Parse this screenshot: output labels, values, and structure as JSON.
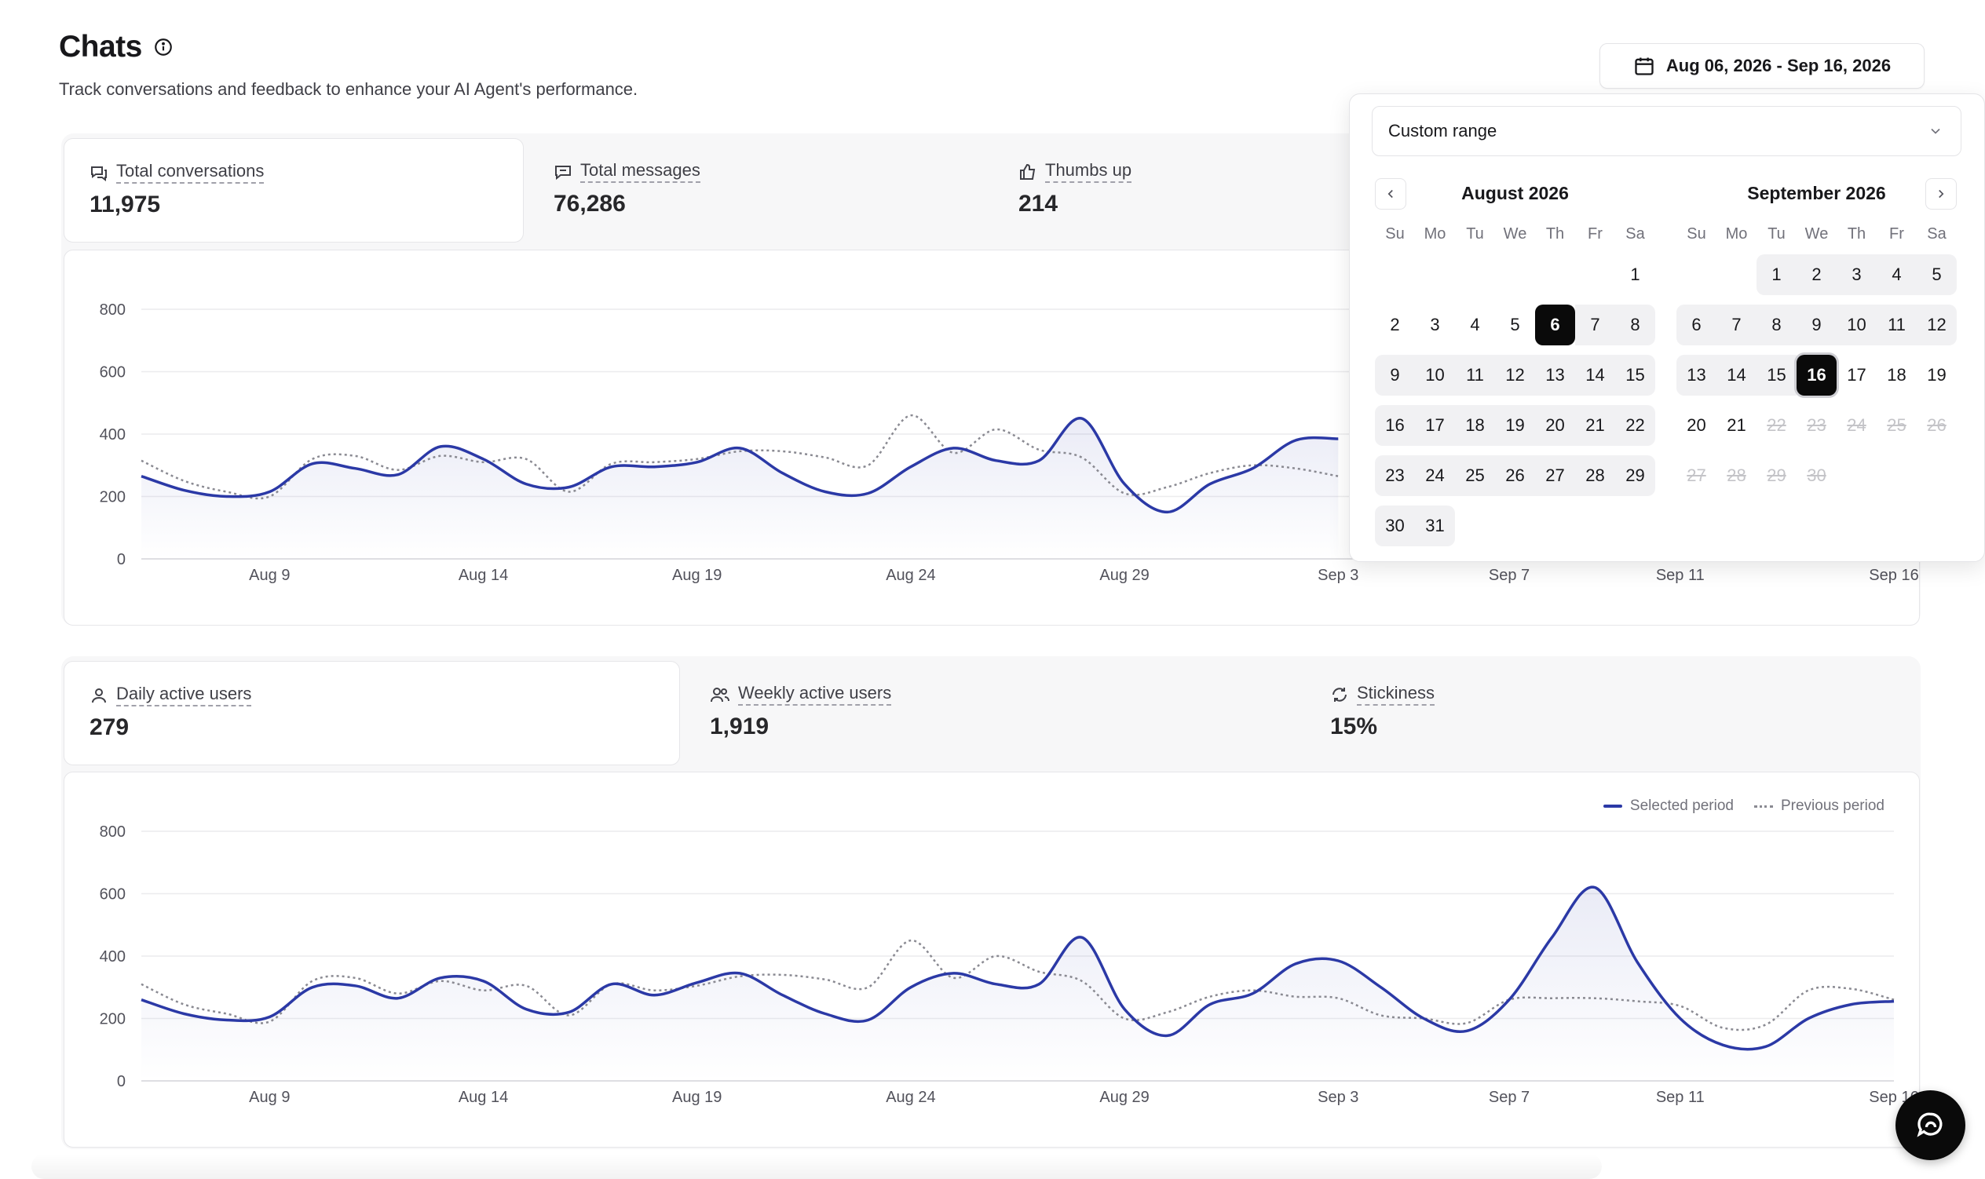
{
  "header": {
    "title": "Chats",
    "subtitle": "Track conversations and feedback to enhance your AI Agent's performance.",
    "date_range": "Aug 06, 2026 - Sep 16, 2026"
  },
  "top_metrics": [
    {
      "label": "Total conversations",
      "value": "11,975",
      "icon": "chat-bubbles-icon"
    },
    {
      "label": "Total messages",
      "value": "76,286",
      "icon": "message-icon"
    },
    {
      "label": "Thumbs up",
      "value": "214",
      "icon": "thumbs-up-icon"
    }
  ],
  "bottom_metrics": [
    {
      "label": "Daily active users",
      "value": "279",
      "icon": "user-icon"
    },
    {
      "label": "Weekly active users",
      "value": "1,919",
      "icon": "users-icon"
    },
    {
      "label": "Stickiness",
      "value": "15%",
      "icon": "refresh-icon"
    }
  ],
  "legend": {
    "selected": "Selected period",
    "previous": "Previous period"
  },
  "date_picker": {
    "preset": "Custom range",
    "months": [
      {
        "title": "August 2026"
      },
      {
        "title": "September 2026"
      }
    ],
    "weekdays": [
      "Su",
      "Mo",
      "Tu",
      "We",
      "Th",
      "Fr",
      "Sa"
    ]
  },
  "colors": {
    "selected": "#2b39a6",
    "previous": "#8a8a92",
    "accent": "#0a0a0a"
  },
  "chart_data": [
    {
      "type": "line",
      "ylim": [
        0,
        800
      ],
      "yticks": [
        0,
        200,
        400,
        600,
        800
      ],
      "xtick_labels": [
        "Aug 9",
        "Aug 14",
        "Aug 19",
        "Aug 24",
        "Aug 29",
        "Sep 3",
        "Sep 7",
        "Sep 11",
        "Sep 16"
      ],
      "x": [
        "Aug 6",
        "Aug 7",
        "Aug 8",
        "Aug 9",
        "Aug 10",
        "Aug 11",
        "Aug 12",
        "Aug 13",
        "Aug 14",
        "Aug 15",
        "Aug 16",
        "Aug 17",
        "Aug 18",
        "Aug 19",
        "Aug 20",
        "Aug 21",
        "Aug 22",
        "Aug 23",
        "Aug 24",
        "Aug 25",
        "Aug 26",
        "Aug 27",
        "Aug 28",
        "Aug 29",
        "Aug 30",
        "Aug 31",
        "Sep 1",
        "Sep 2",
        "Sep 3"
      ],
      "series": [
        {
          "name": "Selected period",
          "values": [
            265,
            220,
            200,
            215,
            305,
            290,
            270,
            360,
            320,
            240,
            230,
            295,
            295,
            310,
            355,
            275,
            215,
            210,
            295,
            355,
            315,
            315,
            450,
            240,
            150,
            240,
            290,
            380,
            385
          ]
        },
        {
          "name": "Previous period",
          "values": [
            315,
            250,
            215,
            200,
            320,
            330,
            285,
            330,
            310,
            320,
            215,
            305,
            310,
            320,
            345,
            345,
            325,
            300,
            460,
            340,
            415,
            350,
            325,
            210,
            230,
            275,
            300,
            290,
            265
          ]
        }
      ]
    },
    {
      "type": "line",
      "ylim": [
        0,
        800
      ],
      "yticks": [
        0,
        200,
        400,
        600,
        800
      ],
      "xtick_labels": [
        "Aug 9",
        "Aug 14",
        "Aug 19",
        "Aug 24",
        "Aug 29",
        "Sep 3",
        "Sep 7",
        "Sep 11",
        "Sep 16"
      ],
      "x": [
        "Aug 6",
        "Aug 7",
        "Aug 8",
        "Aug 9",
        "Aug 10",
        "Aug 11",
        "Aug 12",
        "Aug 13",
        "Aug 14",
        "Aug 15",
        "Aug 16",
        "Aug 17",
        "Aug 18",
        "Aug 19",
        "Aug 20",
        "Aug 21",
        "Aug 22",
        "Aug 23",
        "Aug 24",
        "Aug 25",
        "Aug 26",
        "Aug 27",
        "Aug 28",
        "Aug 29",
        "Aug 30",
        "Aug 31",
        "Sep 1",
        "Sep 2",
        "Sep 3",
        "Sep 4",
        "Sep 5",
        "Sep 6",
        "Sep 7",
        "Sep 8",
        "Sep 9",
        "Sep 10",
        "Sep 11",
        "Sep 12",
        "Sep 13",
        "Sep 14",
        "Sep 15",
        "Sep 16"
      ],
      "series": [
        {
          "name": "Selected period",
          "values": [
            260,
            215,
            195,
            205,
            300,
            305,
            265,
            330,
            320,
            230,
            220,
            310,
            275,
            315,
            345,
            275,
            215,
            195,
            300,
            345,
            310,
            310,
            460,
            230,
            145,
            245,
            280,
            375,
            385,
            300,
            200,
            160,
            260,
            460,
            620,
            380,
            200,
            115,
            110,
            200,
            245,
            255
          ]
        },
        {
          "name": "Previous period",
          "values": [
            310,
            245,
            215,
            190,
            320,
            330,
            280,
            320,
            290,
            305,
            210,
            310,
            290,
            305,
            335,
            340,
            325,
            300,
            450,
            330,
            400,
            350,
            320,
            200,
            220,
            270,
            290,
            270,
            265,
            210,
            200,
            185,
            260,
            265,
            265,
            255,
            240,
            170,
            180,
            290,
            295,
            260
          ]
        }
      ]
    }
  ]
}
